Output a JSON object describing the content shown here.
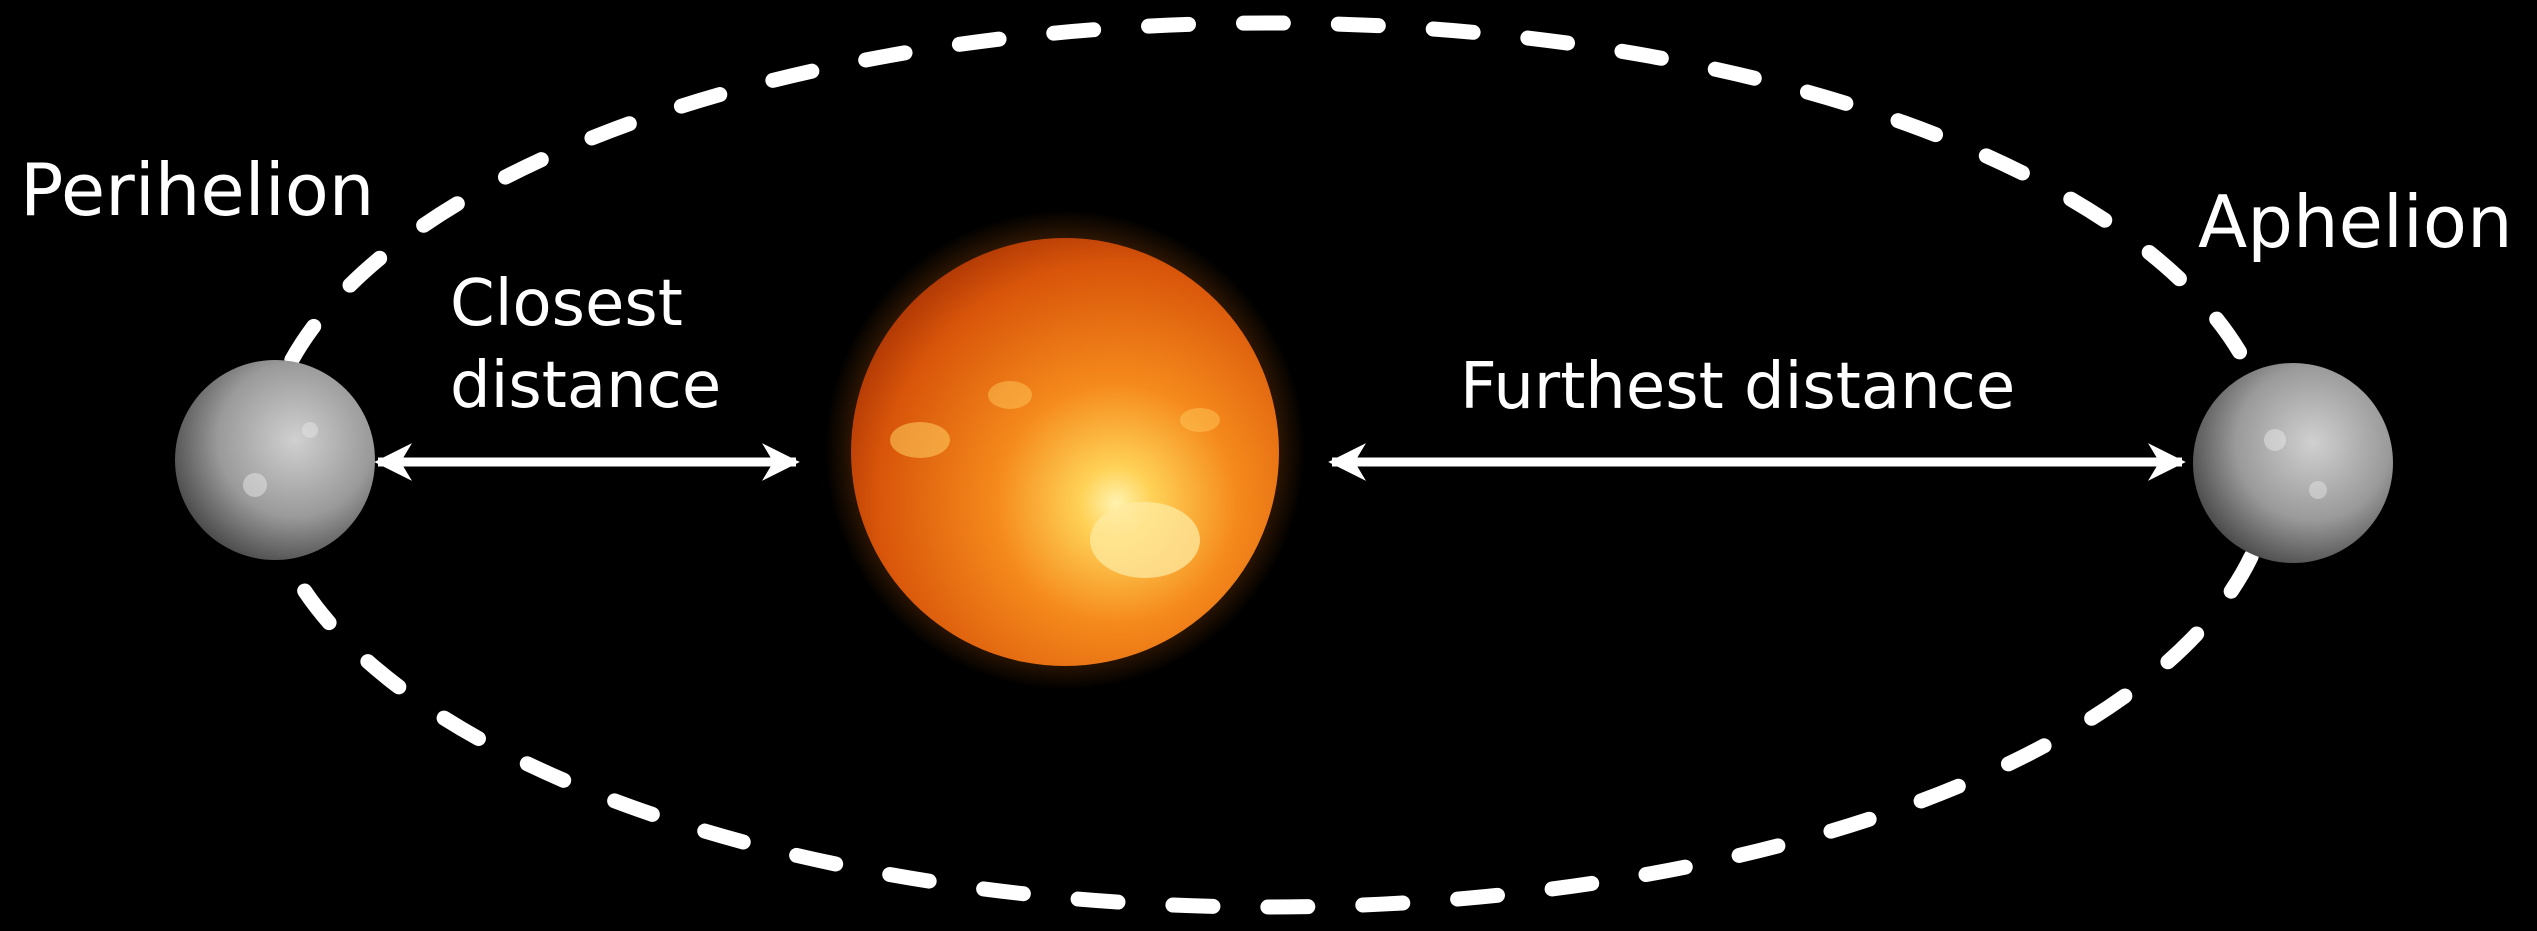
{
  "labels": {
    "perihelion": "Perihelion",
    "aphelion": "Aphelion",
    "closest_line1": "Closest",
    "closest_line2": "distance",
    "furthest": "Furthest distance"
  },
  "colors": {
    "background": "#000000",
    "orbit": "#ffffff",
    "arrow": "#ffffff",
    "text": "#ffffff",
    "sun_core": "#ffe27a",
    "sun_mid": "#f07a12",
    "sun_edge": "#b83a05",
    "planet_light": "#d9d9d9",
    "planet_dark": "#4a4a4a"
  },
  "icons": {
    "sun": "sun-icon",
    "planet_perihelion": "planet-icon",
    "planet_aphelion": "planet-icon"
  }
}
